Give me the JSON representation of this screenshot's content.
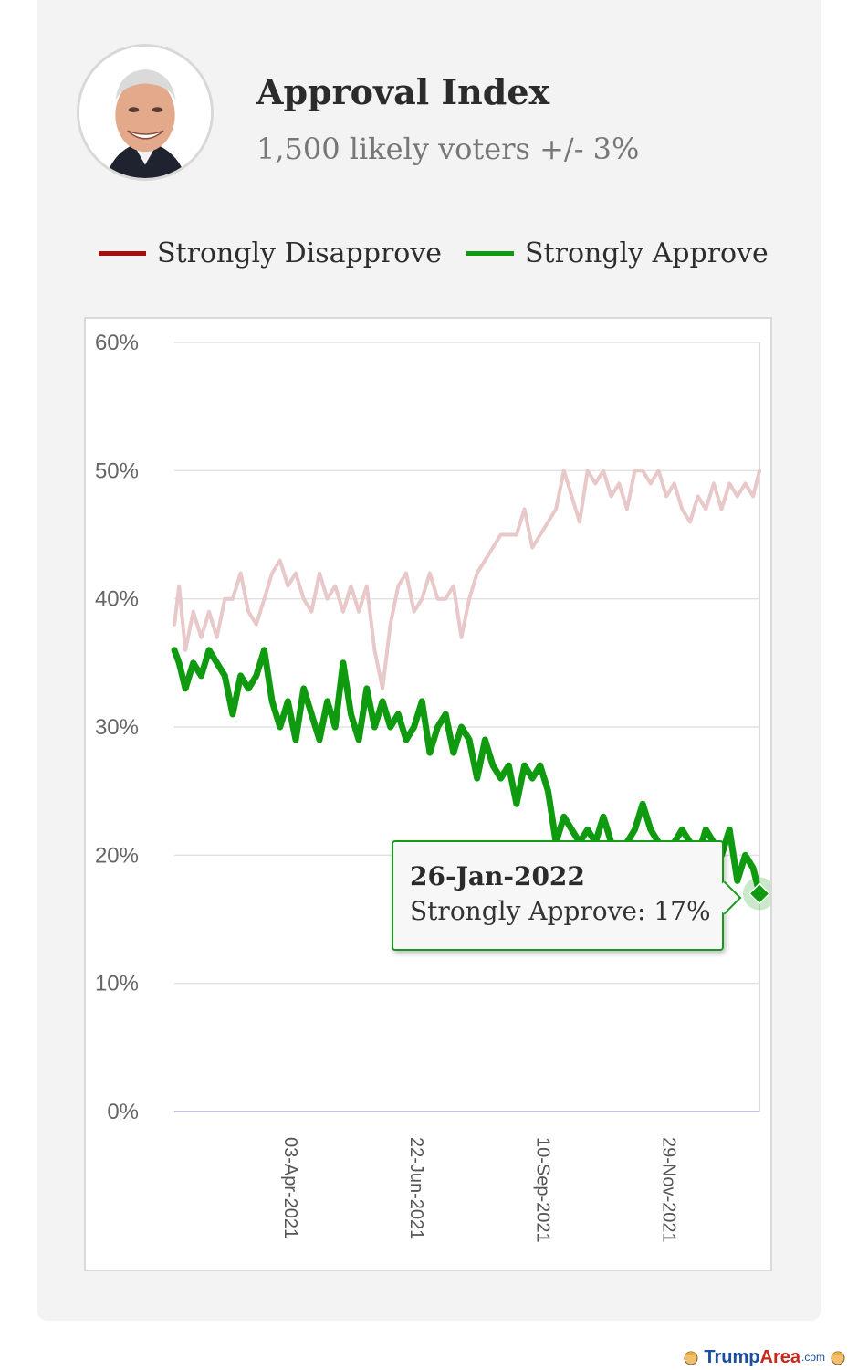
{
  "header": {
    "title": "Approval Index",
    "subtitle": "1,500 likely voters +/- 3%"
  },
  "legend": {
    "items": [
      {
        "label": "Strongly Disapprove",
        "color": "#a50f0f"
      },
      {
        "label": "Strongly Approve",
        "color": "#0f9a0f"
      }
    ]
  },
  "tooltip": {
    "date": "26-Jan-2022",
    "text": "Strongly Approve: 17%"
  },
  "watermark": {
    "brand_a": "Trump",
    "brand_b": "Area",
    "suffix": ".com"
  },
  "chart_data": {
    "type": "line",
    "xlabel": "",
    "ylabel": "",
    "ylim": [
      0,
      60
    ],
    "y_ticks": [
      "0%",
      "10%",
      "20%",
      "30%",
      "40%",
      "50%",
      "60%"
    ],
    "y_tick_values": [
      0,
      10,
      20,
      30,
      40,
      50,
      60
    ],
    "x_range": [
      "2021-01-20",
      "2022-01-26"
    ],
    "x_tick_labels": [
      "03-Apr-2021",
      "22-Jun-2021",
      "10-Sep-2021",
      "29-Nov-2021"
    ],
    "x_tick_dates": [
      "2021-04-03",
      "2021-06-22",
      "2021-09-10",
      "2021-11-29"
    ],
    "grid": true,
    "legend_position": "top",
    "highlighted_point": {
      "series": "Strongly Approve",
      "x": "2022-01-26",
      "y": 17
    },
    "series": [
      {
        "name": "Strongly Disapprove",
        "color": "#e8c8c8",
        "points": [
          [
            "2021-01-20",
            38
          ],
          [
            "2021-01-23",
            41
          ],
          [
            "2021-01-27",
            36
          ],
          [
            "2021-02-01",
            39
          ],
          [
            "2021-02-06",
            37
          ],
          [
            "2021-02-11",
            39
          ],
          [
            "2021-02-16",
            37
          ],
          [
            "2021-02-21",
            40
          ],
          [
            "2021-02-26",
            40
          ],
          [
            "2021-03-03",
            42
          ],
          [
            "2021-03-08",
            39
          ],
          [
            "2021-03-13",
            38
          ],
          [
            "2021-03-18",
            40
          ],
          [
            "2021-03-23",
            42
          ],
          [
            "2021-03-28",
            43
          ],
          [
            "2021-04-02",
            41
          ],
          [
            "2021-04-07",
            42
          ],
          [
            "2021-04-12",
            40
          ],
          [
            "2021-04-17",
            39
          ],
          [
            "2021-04-22",
            42
          ],
          [
            "2021-04-27",
            40
          ],
          [
            "2021-05-02",
            41
          ],
          [
            "2021-05-07",
            39
          ],
          [
            "2021-05-12",
            41
          ],
          [
            "2021-05-17",
            39
          ],
          [
            "2021-05-22",
            41
          ],
          [
            "2021-05-27",
            36
          ],
          [
            "2021-06-01",
            33
          ],
          [
            "2021-06-06",
            38
          ],
          [
            "2021-06-11",
            41
          ],
          [
            "2021-06-16",
            42
          ],
          [
            "2021-06-21",
            39
          ],
          [
            "2021-06-26",
            40
          ],
          [
            "2021-07-01",
            42
          ],
          [
            "2021-07-06",
            40
          ],
          [
            "2021-07-11",
            40
          ],
          [
            "2021-07-16",
            41
          ],
          [
            "2021-07-21",
            37
          ],
          [
            "2021-07-26",
            40
          ],
          [
            "2021-07-31",
            42
          ],
          [
            "2021-08-05",
            43
          ],
          [
            "2021-08-10",
            44
          ],
          [
            "2021-08-15",
            45
          ],
          [
            "2021-08-20",
            45
          ],
          [
            "2021-08-25",
            45
          ],
          [
            "2021-08-30",
            47
          ],
          [
            "2021-09-04",
            44
          ],
          [
            "2021-09-09",
            45
          ],
          [
            "2021-09-14",
            46
          ],
          [
            "2021-09-19",
            47
          ],
          [
            "2021-09-24",
            50
          ],
          [
            "2021-09-29",
            48
          ],
          [
            "2021-10-04",
            46
          ],
          [
            "2021-10-09",
            50
          ],
          [
            "2021-10-14",
            49
          ],
          [
            "2021-10-19",
            50
          ],
          [
            "2021-10-24",
            48
          ],
          [
            "2021-10-29",
            49
          ],
          [
            "2021-11-03",
            47
          ],
          [
            "2021-11-08",
            50
          ],
          [
            "2021-11-13",
            50
          ],
          [
            "2021-11-18",
            49
          ],
          [
            "2021-11-23",
            50
          ],
          [
            "2021-11-28",
            48
          ],
          [
            "2021-12-03",
            49
          ],
          [
            "2021-12-08",
            47
          ],
          [
            "2021-12-13",
            46
          ],
          [
            "2021-12-18",
            48
          ],
          [
            "2021-12-23",
            47
          ],
          [
            "2021-12-28",
            49
          ],
          [
            "2022-01-02",
            47
          ],
          [
            "2022-01-07",
            49
          ],
          [
            "2022-01-12",
            48
          ],
          [
            "2022-01-17",
            49
          ],
          [
            "2022-01-22",
            48
          ],
          [
            "2022-01-26",
            50
          ]
        ]
      },
      {
        "name": "Strongly Approve",
        "color": "#0f9a0f",
        "points": [
          [
            "2021-01-20",
            36
          ],
          [
            "2021-01-23",
            35
          ],
          [
            "2021-01-27",
            33
          ],
          [
            "2021-02-01",
            35
          ],
          [
            "2021-02-06",
            34
          ],
          [
            "2021-02-11",
            36
          ],
          [
            "2021-02-16",
            35
          ],
          [
            "2021-02-21",
            34
          ],
          [
            "2021-02-26",
            31
          ],
          [
            "2021-03-03",
            34
          ],
          [
            "2021-03-08",
            33
          ],
          [
            "2021-03-13",
            34
          ],
          [
            "2021-03-18",
            36
          ],
          [
            "2021-03-23",
            32
          ],
          [
            "2021-03-28",
            30
          ],
          [
            "2021-04-02",
            32
          ],
          [
            "2021-04-07",
            29
          ],
          [
            "2021-04-12",
            33
          ],
          [
            "2021-04-17",
            31
          ],
          [
            "2021-04-22",
            29
          ],
          [
            "2021-04-27",
            32
          ],
          [
            "2021-05-02",
            30
          ],
          [
            "2021-05-07",
            35
          ],
          [
            "2021-05-12",
            31
          ],
          [
            "2021-05-17",
            29
          ],
          [
            "2021-05-22",
            33
          ],
          [
            "2021-05-27",
            30
          ],
          [
            "2021-06-01",
            32
          ],
          [
            "2021-06-06",
            30
          ],
          [
            "2021-06-11",
            31
          ],
          [
            "2021-06-16",
            29
          ],
          [
            "2021-06-21",
            30
          ],
          [
            "2021-06-26",
            32
          ],
          [
            "2021-07-01",
            28
          ],
          [
            "2021-07-06",
            30
          ],
          [
            "2021-07-11",
            31
          ],
          [
            "2021-07-16",
            28
          ],
          [
            "2021-07-21",
            30
          ],
          [
            "2021-07-26",
            29
          ],
          [
            "2021-07-31",
            26
          ],
          [
            "2021-08-05",
            29
          ],
          [
            "2021-08-10",
            27
          ],
          [
            "2021-08-15",
            26
          ],
          [
            "2021-08-20",
            27
          ],
          [
            "2021-08-25",
            24
          ],
          [
            "2021-08-30",
            27
          ],
          [
            "2021-09-04",
            26
          ],
          [
            "2021-09-09",
            27
          ],
          [
            "2021-09-14",
            25
          ],
          [
            "2021-09-19",
            21
          ],
          [
            "2021-09-24",
            23
          ],
          [
            "2021-09-29",
            22
          ],
          [
            "2021-10-04",
            21
          ],
          [
            "2021-10-09",
            22
          ],
          [
            "2021-10-14",
            21
          ],
          [
            "2021-10-19",
            23
          ],
          [
            "2021-10-24",
            21
          ],
          [
            "2021-10-29",
            20
          ],
          [
            "2021-11-03",
            21
          ],
          [
            "2021-11-08",
            22
          ],
          [
            "2021-11-13",
            24
          ],
          [
            "2021-11-18",
            22
          ],
          [
            "2021-11-23",
            21
          ],
          [
            "2021-11-28",
            20
          ],
          [
            "2021-12-03",
            21
          ],
          [
            "2021-12-08",
            22
          ],
          [
            "2021-12-13",
            21
          ],
          [
            "2021-12-18",
            20
          ],
          [
            "2021-12-23",
            22
          ],
          [
            "2021-12-28",
            21
          ],
          [
            "2022-01-02",
            20
          ],
          [
            "2022-01-07",
            22
          ],
          [
            "2022-01-12",
            18
          ],
          [
            "2022-01-17",
            20
          ],
          [
            "2022-01-22",
            19
          ],
          [
            "2022-01-26",
            17
          ]
        ]
      }
    ]
  }
}
